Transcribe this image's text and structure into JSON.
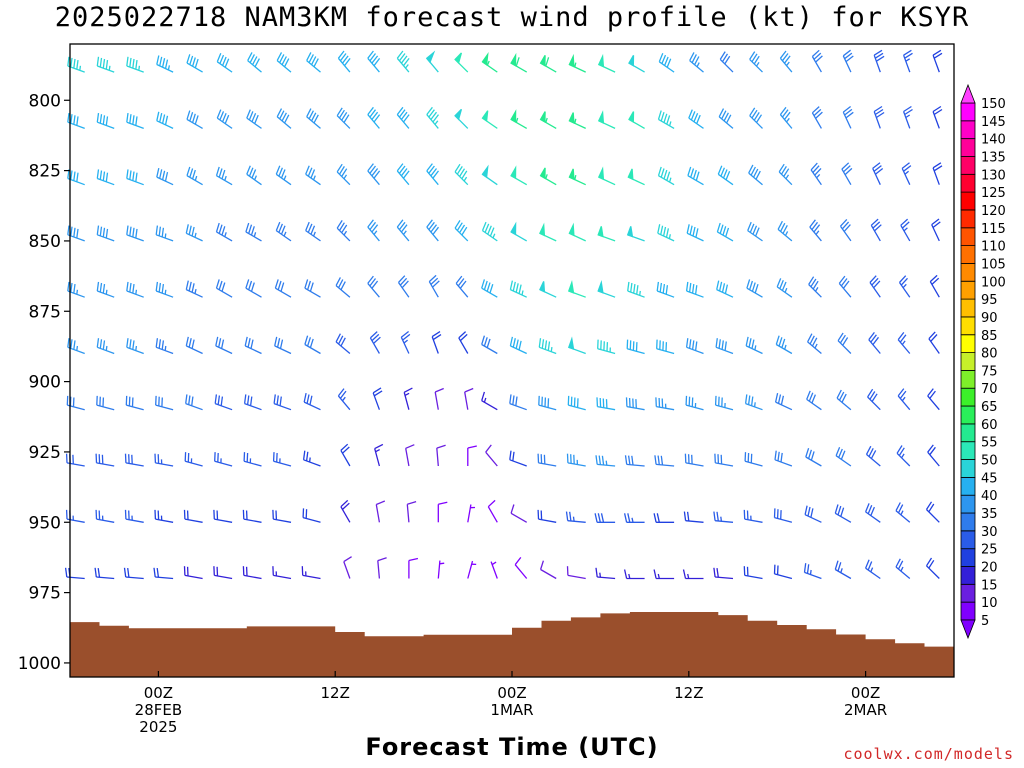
{
  "chart_data": {
    "type": "wind-barb time-height profile",
    "title": "2025022718 NAM3KM forecast wind profile (kt) for KSYR",
    "xlabel": "Forecast Time (UTC)",
    "credit": "coolwx.com/models",
    "y_axis": {
      "label": "",
      "unit": "hPa",
      "ticks": [
        800,
        825,
        850,
        875,
        900,
        925,
        950,
        975,
        1000
      ],
      "range": [
        780,
        1005
      ],
      "reversed": true
    },
    "x_axis": {
      "ticks": [
        {
          "hour": 0,
          "lines": [
            "00Z",
            "28FEB",
            "2025"
          ]
        },
        {
          "hour": 12,
          "lines": [
            "12Z"
          ]
        },
        {
          "hour": 24,
          "lines": [
            "00Z",
            "1MAR"
          ]
        },
        {
          "hour": 36,
          "lines": [
            "12Z"
          ]
        },
        {
          "hour": 48,
          "lines": [
            "00Z",
            "2MAR"
          ]
        }
      ],
      "range_hours": [
        -6,
        54
      ]
    },
    "colorbar": {
      "levels_kt": [
        5,
        10,
        15,
        20,
        25,
        30,
        35,
        40,
        45,
        50,
        55,
        60,
        65,
        70,
        75,
        80,
        85,
        90,
        95,
        100,
        105,
        110,
        115,
        120,
        125,
        130,
        135,
        140,
        145,
        150
      ],
      "colors": [
        "#8000ff",
        "#6a1fe0",
        "#3320d8",
        "#2040e0",
        "#2a5ce8",
        "#2f7cec",
        "#2d96ef",
        "#26b0f0",
        "#2ad4d8",
        "#2be8b8",
        "#24ea90",
        "#2aef5a",
        "#3cf02a",
        "#7ef02a",
        "#c6f02a",
        "#ffff00",
        "#ffde00",
        "#ffbf00",
        "#ffa000",
        "#ff8a00",
        "#ff7000",
        "#ff5400",
        "#ff2a00",
        "#ff0000",
        "#ff0030",
        "#ff0066",
        "#ff0099",
        "#ff00c8",
        "#ff00ff",
        "#ff40ff"
      ]
    },
    "hours": [
      -5,
      -3,
      -1,
      1,
      3,
      5,
      7,
      9,
      11,
      13,
      15,
      17,
      19,
      21,
      23,
      25,
      27,
      29,
      31,
      33,
      35,
      37,
      39,
      41,
      43,
      45,
      47,
      49,
      51,
      53
    ],
    "surface_pressure_hPa": [
      985.5,
      986.8,
      987.7,
      987.7,
      987.7,
      987.7,
      987,
      987,
      987,
      989,
      990.5,
      990.5,
      990,
      990,
      990,
      987.5,
      985,
      983.8,
      982.4,
      981.9,
      981.9,
      981.9,
      983,
      985,
      986.5,
      988,
      989.9,
      991.6,
      993,
      994.2
    ],
    "wind_columns": [
      {
        "hour": -5,
        "speed_kt": [
          45,
          40,
          40,
          38,
          35,
          35,
          30,
          28,
          25,
          22
        ],
        "dir_deg": [
          290,
          290,
          290,
          290,
          290,
          290,
          285,
          280,
          280,
          275
        ]
      },
      {
        "hour": -3,
        "speed_kt": [
          45,
          40,
          40,
          38,
          35,
          35,
          30,
          28,
          25,
          22
        ],
        "dir_deg": [
          290,
          290,
          290,
          290,
          290,
          290,
          285,
          280,
          280,
          275
        ]
      },
      {
        "hour": -1,
        "speed_kt": [
          45,
          40,
          40,
          38,
          35,
          35,
          30,
          28,
          25,
          22
        ],
        "dir_deg": [
          290,
          290,
          290,
          290,
          290,
          290,
          285,
          280,
          280,
          275
        ]
      },
      {
        "hour": 1,
        "speed_kt": [
          43,
          40,
          38,
          36,
          35,
          33,
          30,
          27,
          24,
          20
        ],
        "dir_deg": [
          295,
          295,
          295,
          290,
          290,
          290,
          285,
          280,
          280,
          275
        ]
      },
      {
        "hour": 3,
        "speed_kt": [
          42,
          38,
          36,
          35,
          33,
          32,
          30,
          26,
          22,
          18
        ],
        "dir_deg": [
          300,
          300,
          300,
          295,
          295,
          295,
          290,
          285,
          280,
          280
        ]
      },
      {
        "hour": 5,
        "speed_kt": [
          40,
          38,
          35,
          34,
          32,
          30,
          28,
          25,
          22,
          18
        ],
        "dir_deg": [
          305,
          305,
          300,
          300,
          300,
          295,
          290,
          285,
          280,
          280
        ]
      },
      {
        "hour": 7,
        "speed_kt": [
          40,
          38,
          35,
          33,
          32,
          30,
          28,
          25,
          22,
          18
        ],
        "dir_deg": [
          310,
          305,
          305,
          300,
          300,
          295,
          290,
          285,
          280,
          280
        ]
      },
      {
        "hour": 9,
        "speed_kt": [
          40,
          38,
          35,
          33,
          32,
          30,
          28,
          25,
          20,
          15
        ],
        "dir_deg": [
          310,
          310,
          305,
          305,
          300,
          295,
          290,
          285,
          280,
          280
        ]
      },
      {
        "hour": 11,
        "speed_kt": [
          40,
          38,
          35,
          33,
          32,
          30,
          28,
          24,
          20,
          15
        ],
        "dir_deg": [
          310,
          310,
          305,
          305,
          300,
          300,
          295,
          290,
          285,
          280
        ]
      },
      {
        "hour": 13,
        "speed_kt": [
          40,
          38,
          35,
          33,
          30,
          28,
          25,
          22,
          18,
          12
        ],
        "dir_deg": [
          320,
          315,
          315,
          315,
          310,
          310,
          320,
          330,
          330,
          340
        ]
      },
      {
        "hour": 15,
        "speed_kt": [
          42,
          40,
          38,
          35,
          32,
          28,
          20,
          15,
          12,
          10
        ],
        "dir_deg": [
          320,
          320,
          320,
          320,
          320,
          330,
          340,
          345,
          350,
          355
        ]
      },
      {
        "hour": 17,
        "speed_kt": [
          45,
          42,
          40,
          36,
          32,
          25,
          15,
          12,
          10,
          8
        ],
        "dir_deg": [
          320,
          320,
          320,
          320,
          325,
          335,
          345,
          350,
          355,
          0
        ]
      },
      {
        "hour": 19,
        "speed_kt": [
          48,
          45,
          40,
          38,
          30,
          22,
          12,
          10,
          8,
          6
        ],
        "dir_deg": [
          320,
          320,
          320,
          320,
          330,
          340,
          350,
          355,
          0,
          5
        ]
      },
      {
        "hour": 21,
        "speed_kt": [
          50,
          48,
          45,
          40,
          32,
          20,
          10,
          8,
          6,
          5
        ],
        "dir_deg": [
          315,
          315,
          315,
          315,
          320,
          330,
          350,
          0,
          10,
          15
        ]
      },
      {
        "hour": 23,
        "speed_kt": [
          55,
          52,
          48,
          45,
          40,
          30,
          15,
          10,
          8,
          6
        ],
        "dir_deg": [
          305,
          305,
          305,
          305,
          300,
          300,
          300,
          320,
          330,
          340
        ]
      },
      {
        "hour": 25,
        "speed_kt": [
          58,
          55,
          52,
          48,
          45,
          40,
          30,
          20,
          12,
          8
        ],
        "dir_deg": [
          300,
          300,
          300,
          300,
          295,
          295,
          290,
          290,
          300,
          320
        ]
      },
      {
        "hour": 27,
        "speed_kt": [
          58,
          56,
          55,
          52,
          48,
          45,
          38,
          30,
          20,
          10
        ],
        "dir_deg": [
          300,
          300,
          300,
          295,
          295,
          290,
          285,
          280,
          280,
          300
        ]
      },
      {
        "hour": 29,
        "speed_kt": [
          55,
          55,
          55,
          52,
          50,
          48,
          42,
          35,
          25,
          12
        ],
        "dir_deg": [
          295,
          295,
          295,
          295,
          290,
          290,
          285,
          280,
          275,
          280
        ]
      },
      {
        "hour": 31,
        "speed_kt": [
          52,
          52,
          52,
          50,
          48,
          45,
          40,
          35,
          28,
          15
        ],
        "dir_deg": [
          295,
          295,
          295,
          290,
          290,
          285,
          280,
          275,
          270,
          275
        ]
      },
      {
        "hour": 33,
        "speed_kt": [
          48,
          50,
          50,
          48,
          45,
          42,
          38,
          32,
          25,
          15
        ],
        "dir_deg": [
          300,
          300,
          295,
          290,
          290,
          285,
          280,
          275,
          270,
          270
        ]
      },
      {
        "hour": 35,
        "speed_kt": [
          42,
          45,
          45,
          45,
          42,
          40,
          35,
          30,
          22,
          15
        ],
        "dir_deg": [
          305,
          300,
          300,
          295,
          290,
          285,
          280,
          275,
          270,
          270
        ]
      },
      {
        "hour": 37,
        "speed_kt": [
          35,
          40,
          42,
          42,
          40,
          38,
          35,
          30,
          22,
          15
        ],
        "dir_deg": [
          310,
          305,
          300,
          295,
          290,
          290,
          285,
          280,
          275,
          270
        ]
      },
      {
        "hour": 39,
        "speed_kt": [
          32,
          38,
          40,
          40,
          40,
          38,
          35,
          30,
          25,
          18
        ],
        "dir_deg": [
          315,
          310,
          305,
          300,
          295,
          290,
          285,
          280,
          275,
          275
        ]
      },
      {
        "hour": 41,
        "speed_kt": [
          35,
          38,
          38,
          38,
          38,
          36,
          35,
          30,
          25,
          20
        ],
        "dir_deg": [
          315,
          315,
          310,
          305,
          300,
          295,
          290,
          285,
          280,
          280
        ]
      },
      {
        "hour": 43,
        "speed_kt": [
          35,
          35,
          35,
          35,
          35,
          35,
          32,
          30,
          28,
          22
        ],
        "dir_deg": [
          320,
          320,
          315,
          310,
          305,
          300,
          295,
          290,
          285,
          285
        ]
      },
      {
        "hour": 45,
        "speed_kt": [
          32,
          32,
          33,
          33,
          33,
          33,
          32,
          30,
          28,
          25
        ],
        "dir_deg": [
          330,
          330,
          325,
          320,
          315,
          310,
          305,
          300,
          295,
          290
        ]
      },
      {
        "hour": 47,
        "speed_kt": [
          30,
          30,
          30,
          30,
          30,
          30,
          30,
          30,
          28,
          25
        ],
        "dir_deg": [
          335,
          335,
          330,
          325,
          320,
          315,
          310,
          305,
          300,
          300
        ]
      },
      {
        "hour": 49,
        "speed_kt": [
          28,
          28,
          28,
          28,
          28,
          28,
          28,
          28,
          28,
          25
        ],
        "dir_deg": [
          340,
          340,
          335,
          330,
          325,
          320,
          315,
          310,
          305,
          305
        ]
      },
      {
        "hour": 51,
        "speed_kt": [
          25,
          25,
          25,
          25,
          25,
          25,
          25,
          25,
          25,
          25
        ],
        "dir_deg": [
          340,
          340,
          335,
          330,
          325,
          320,
          320,
          315,
          310,
          310
        ]
      },
      {
        "hour": 53,
        "speed_kt": [
          22,
          22,
          22,
          22,
          22,
          22,
          22,
          22,
          22,
          22
        ],
        "dir_deg": [
          340,
          340,
          340,
          335,
          330,
          325,
          320,
          320,
          315,
          315
        ]
      }
    ],
    "barb_levels_hPa": [
      790,
      810,
      830,
      850,
      870,
      890,
      910,
      930,
      950,
      970
    ]
  }
}
